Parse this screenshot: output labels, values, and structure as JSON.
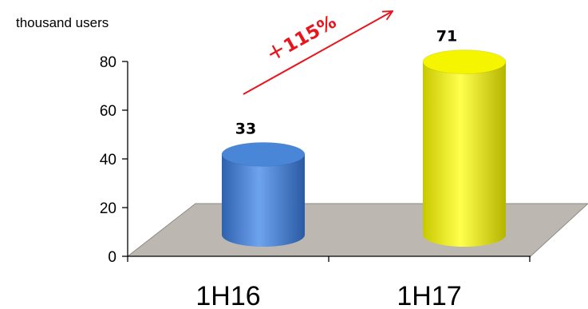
{
  "chart_data": {
    "type": "bar",
    "style": "3d-cylinder",
    "unit_label": "thousand users",
    "categories": [
      "1H16",
      "1H17"
    ],
    "values": [
      33,
      71
    ],
    "data_labels": [
      "33",
      "71"
    ],
    "bar_colors": [
      "#4a86d8",
      "#f5f500"
    ],
    "ylim": [
      0,
      80
    ],
    "yticks": [
      "0",
      "20",
      "40",
      "60",
      "80"
    ],
    "grid": false,
    "annotation": {
      "plus": "+",
      "text": "115%",
      "color": "#e8151c"
    },
    "floor_color": "#bcb8b1"
  }
}
